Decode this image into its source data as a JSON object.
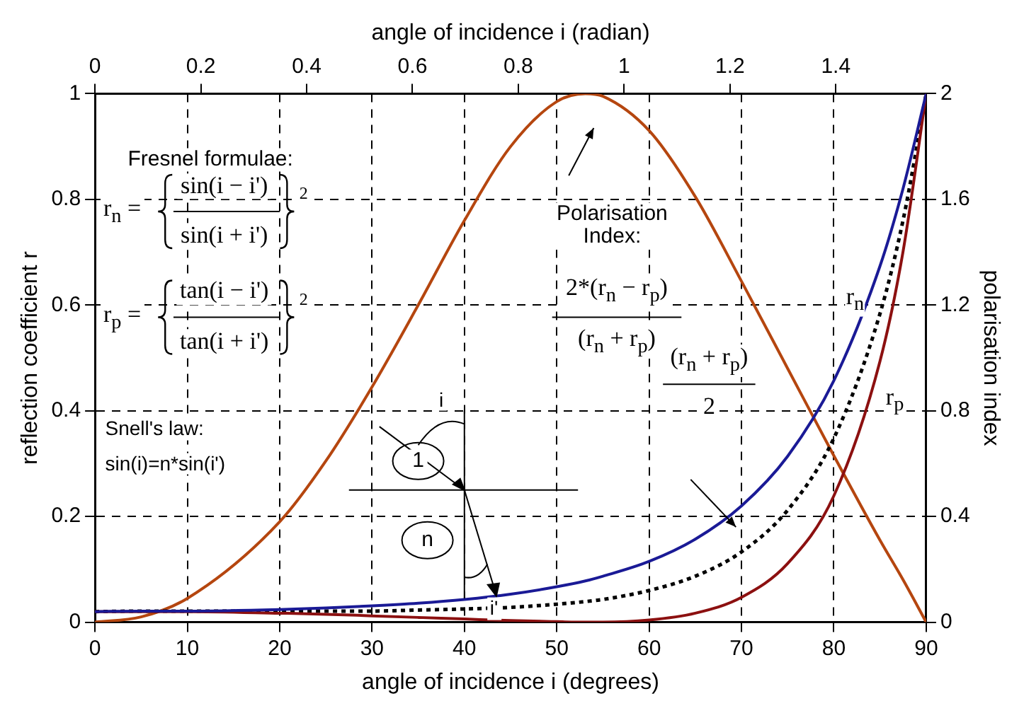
{
  "chart_data": {
    "type": "line",
    "xlabel": "angle of incidence i (degrees)",
    "x2label": "angle of incidence i (radian)",
    "ylabel": "reflection coefficient r",
    "y2label": "polarisation index",
    "x": [
      0,
      5,
      10,
      20,
      25,
      30,
      35,
      40,
      45,
      50,
      53.1,
      55,
      60,
      65,
      70,
      75,
      80,
      85,
      87.5,
      90
    ],
    "series": [
      {
        "name": "r$_{n}$",
        "color": "#1a1a96",
        "values": [
          0.02,
          0.021,
          0.021,
          0.024,
          0.027,
          0.031,
          0.036,
          0.043,
          0.053,
          0.067,
          0.078,
          0.087,
          0.115,
          0.157,
          0.22,
          0.314,
          0.457,
          0.674,
          0.821,
          1.0
        ]
      },
      {
        "name": "r$_{p}$",
        "color": "#8c1010",
        "values": [
          0.02,
          0.02,
          0.02,
          0.017,
          0.015,
          0.012,
          0.009,
          0.006,
          0.003,
          0.001,
          0.0,
          0.0,
          0.004,
          0.017,
          0.047,
          0.111,
          0.239,
          0.494,
          0.702,
          1.0
        ]
      },
      {
        "color": "#000000",
        "line_style": "dotted",
        "values": [
          0.02,
          0.021,
          0.021,
          0.021,
          0.021,
          0.021,
          0.023,
          0.025,
          0.028,
          0.034,
          0.039,
          0.043,
          0.06,
          0.087,
          0.133,
          0.212,
          0.348,
          0.584,
          0.761,
          1.0
        ]
      },
      {
        "color": "#b5460f",
        "axis": "y2",
        "values": [
          0.0,
          0.02,
          0.09,
          0.38,
          0.61,
          0.89,
          1.2,
          1.52,
          1.8,
          1.97,
          2.0,
          1.99,
          1.86,
          1.61,
          1.29,
          0.96,
          0.63,
          0.31,
          0.16,
          0.0
        ]
      }
    ],
    "xlim": [
      0,
      90
    ],
    "xticks": [
      0,
      10,
      20,
      30,
      40,
      50,
      60,
      70,
      80,
      90
    ],
    "x2lim": [
      0,
      1.5708
    ],
    "x2ticks": [
      0,
      0.2,
      0.4,
      0.6,
      0.8,
      1,
      1.2,
      1.4
    ],
    "ylim": [
      0,
      1
    ],
    "yticks": [
      0,
      0.2,
      0.4,
      0.6,
      0.8,
      1
    ],
    "y2lim": [
      0,
      2
    ],
    "y2ticks": [
      0,
      0.4,
      0.8,
      1.2,
      1.6,
      2
    ],
    "grid": true,
    "legend": false,
    "marker": "none",
    "line_style": "solid",
    "annotations": [
      "Fresnel formulae:",
      "r$_{n}$ =",
      "sin(i − i')",
      "sin(i + i')",
      "2",
      "r$_{p}$ =",
      "tan(i − i')",
      "tan(i + i')",
      "2",
      "Polarisation Index:",
      "2*(r$_{n}$ − r$_{p}$)",
      "(r$_{n}$ + r$_{p}$)",
      "(r$_{n}$ + r$_{p}$)",
      "2",
      "Snell's law:",
      "sin(i)=n*sin(i')",
      "1",
      "n",
      {
        "text": "i",
        "x": 37.5,
        "y": 0.42
      },
      "i'"
    ]
  }
}
